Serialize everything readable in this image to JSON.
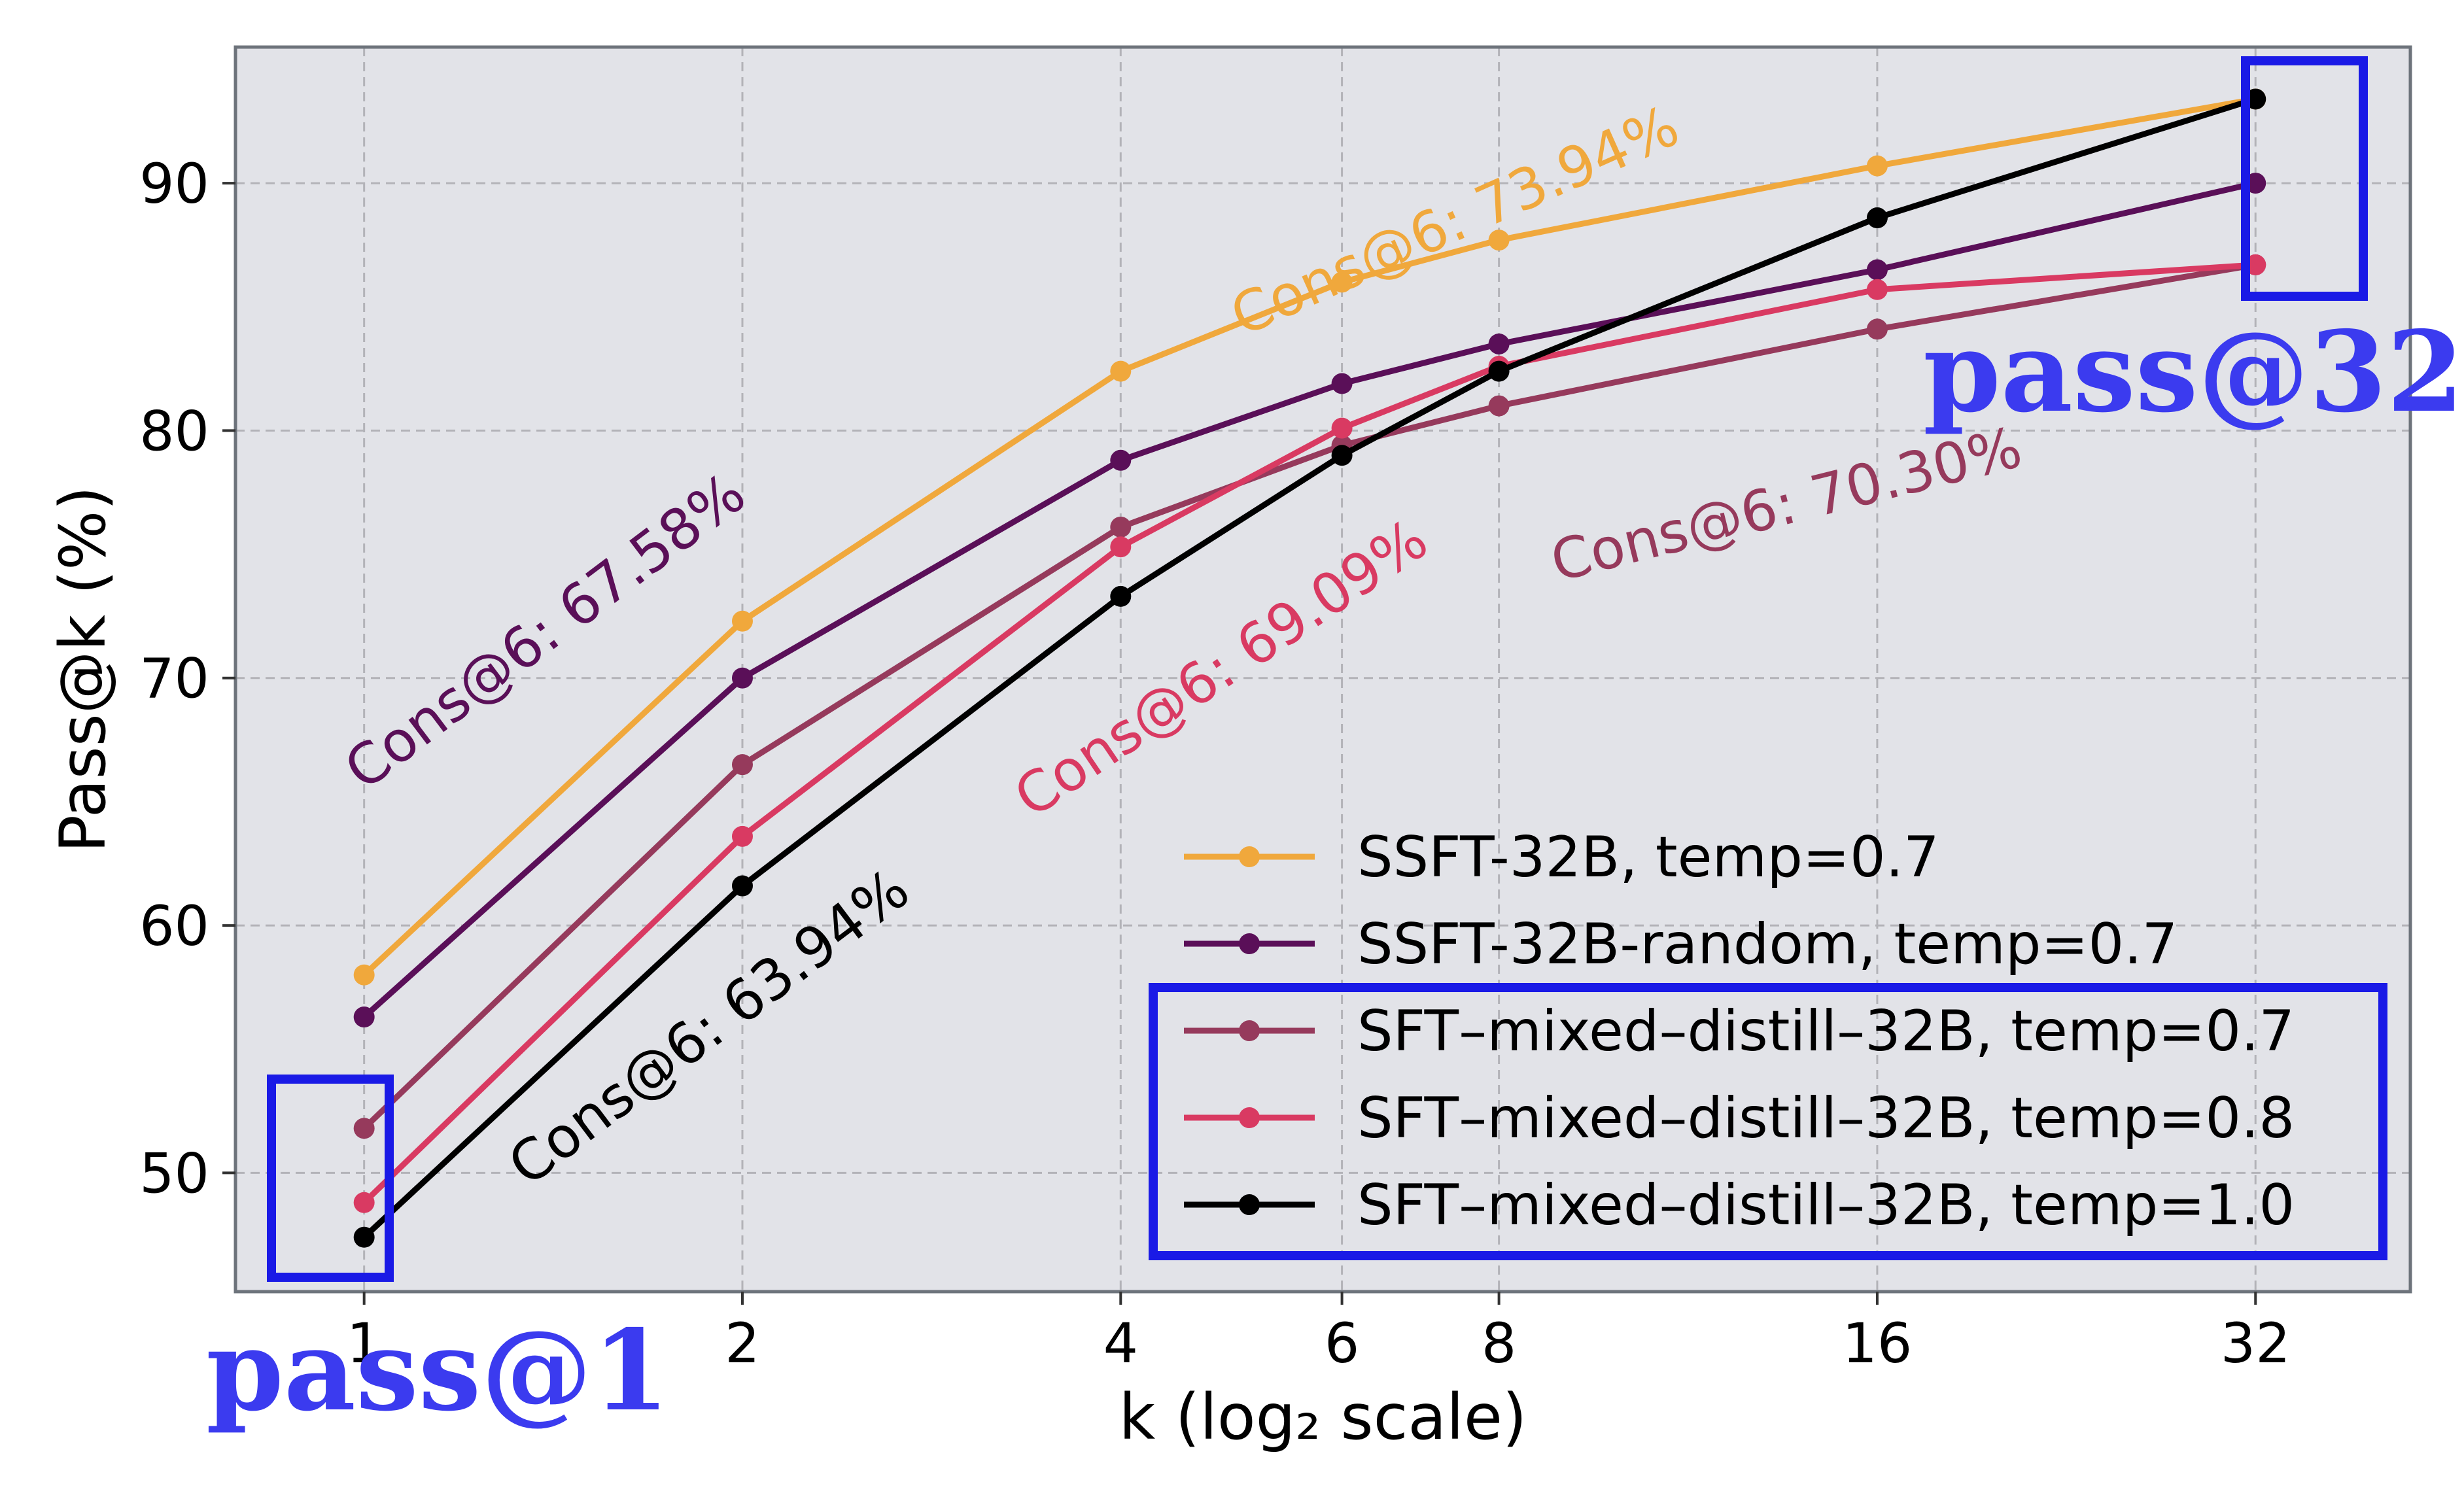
{
  "chart_data": {
    "type": "line",
    "title": "",
    "xlabel": "k (log₂ scale)",
    "ylabel": "Pass@k (%)",
    "x_scale": "log2",
    "x": [
      1,
      2,
      4,
      6,
      8,
      16,
      32
    ],
    "x_tick_labels": [
      "1",
      "2",
      "4",
      "6",
      "8",
      "16",
      "32"
    ],
    "y_ticks": [
      50,
      60,
      70,
      80,
      90
    ],
    "y_tick_labels": [
      "50",
      "60",
      "70",
      "80",
      "90"
    ],
    "xlim": [
      0.79,
      42.5
    ],
    "ylim": [
      45.2,
      95.5
    ],
    "grid": true,
    "background": "#e2e3e8",
    "legend_position": "lower right",
    "series": [
      {
        "name": "SSFT-32B, temp=0.7",
        "color": "#f0a83c",
        "values": [
          58.0,
          72.3,
          82.4,
          86.0,
          87.7,
          90.7,
          93.4
        ]
      },
      {
        "name": "SSFT-32B-random, temp=0.7",
        "color": "#5a0f58",
        "values": [
          56.3,
          70.0,
          78.8,
          81.9,
          83.5,
          86.5,
          90.0
        ]
      },
      {
        "name": "SFT–mixed–distill–32B, temp=0.7",
        "color": "#963a5c",
        "values": [
          51.8,
          66.5,
          76.1,
          79.4,
          81.0,
          84.1,
          86.7
        ]
      },
      {
        "name": "SFT–mixed–distill–32B, temp=0.8",
        "color": "#d93a62",
        "values": [
          48.8,
          63.6,
          75.3,
          80.1,
          82.6,
          85.7,
          86.7
        ]
      },
      {
        "name": "SFT–mixed–distill–32B, temp=1.0",
        "color": "#000000",
        "values": [
          47.4,
          61.6,
          73.3,
          79.0,
          82.4,
          88.6,
          93.4
        ]
      }
    ],
    "annotations": [
      {
        "text": "Cons@6: 73.94%",
        "color": "#f0a83c",
        "x": 5.0,
        "y": 83.8,
        "angle": -24
      },
      {
        "text": "Cons@6: 67.58%",
        "color": "#5a0f58",
        "x": 1.0,
        "y": 65.4,
        "angle": -37
      },
      {
        "text": "Cons@6: 69.09%",
        "color": "#d93a62",
        "x": 3.4,
        "y": 64.3,
        "angle": -34
      },
      {
        "text": "Cons@6: 63.94%",
        "color": "#000000",
        "x": 1.35,
        "y": 49.4,
        "angle": -37
      },
      {
        "text": "Cons@6: 70.30%",
        "color": "#963a5c",
        "x": 8.9,
        "y": 73.9,
        "angle": -14
      }
    ]
  },
  "highlights": {
    "color": "#1a1ae6",
    "label_color": "#3b3bef",
    "pass1_label": "pass@1",
    "pass32_label": "pass@32"
  }
}
